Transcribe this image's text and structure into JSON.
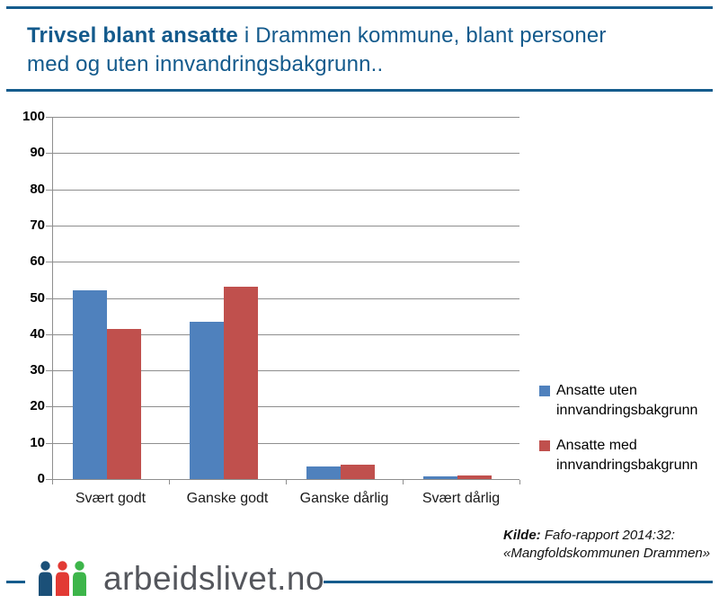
{
  "header": {
    "title_bold": "Trivsel blant ansatte",
    "title_rest_line1": " i Drammen kommune, blant personer",
    "title_line2": "med og uten innvandringsbakgrunn.."
  },
  "chart_data": {
    "type": "bar",
    "categories": [
      "Svært godt",
      "Ganske godt",
      "Ganske dårlig",
      "Svært dårlig"
    ],
    "series": [
      {
        "name": "Ansatte uten innvandringsbakgrunn",
        "color": "#4F81BD",
        "values": [
          52,
          43.5,
          3.6,
          0.8
        ]
      },
      {
        "name": "Ansatte med innvandringsbakgrunn",
        "color": "#C0504D",
        "values": [
          41.5,
          53,
          4,
          1
        ]
      }
    ],
    "ylim": [
      0,
      100
    ],
    "yticks": [
      0,
      10,
      20,
      30,
      40,
      50,
      60,
      70,
      80,
      90,
      100
    ],
    "grid": true,
    "legend_position": "right",
    "gridline_color": "#8e8e8e"
  },
  "legend": {
    "item1": "Ansatte uten innvandringsbakgrunn",
    "item2": "Ansatte med innvandringsbakgrunn"
  },
  "footer": {
    "source_label": "Kilde:",
    "source_text1": " Fafo-rapport 2014:32:",
    "source_text2": "«Mangfoldskommunen Drammen»",
    "logo_text": "arbeidslivet.no",
    "logo_colors": [
      "#1b5078",
      "#e23a34",
      "#3db54a"
    ]
  },
  "colors": {
    "accent_blue": "#155c8d",
    "title_text": "#135a8c",
    "bar_blue": "#4F81BD",
    "bar_red": "#C0504D",
    "logo_gray": "#54565c"
  }
}
